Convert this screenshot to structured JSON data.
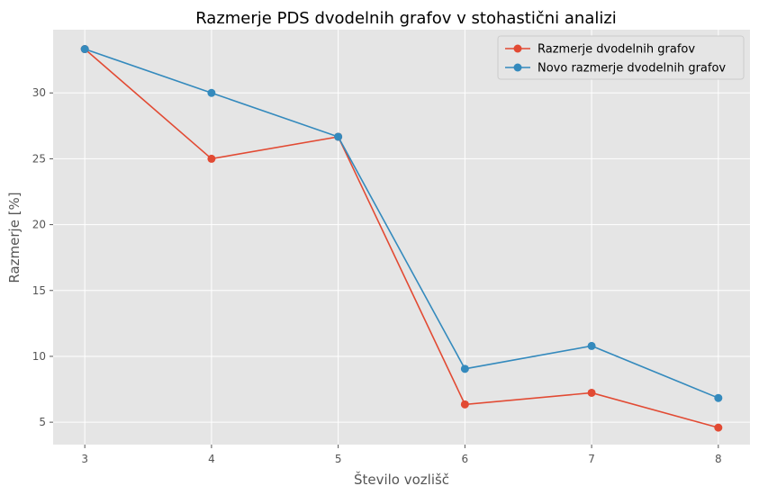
{
  "chart_data": {
    "type": "line",
    "title": "Razmerje PDS dvodelnih grafov v stohastični analizi",
    "xlabel": "Število vozlišč",
    "ylabel": "Razmerje [%]",
    "x": [
      3,
      4,
      5,
      6,
      7,
      8
    ],
    "xlim": [
      2.75,
      8.25
    ],
    "ylim": [
      3.3,
      34.8
    ],
    "x_ticks": [
      3,
      4,
      5,
      6,
      7,
      8
    ],
    "y_ticks": [
      5,
      10,
      15,
      20,
      25,
      30
    ],
    "grid": true,
    "legend_position": "top-right",
    "background": "#e5e5e5",
    "series": [
      {
        "name": "Razmerje dvodelnih grafov",
        "color": "#e24a33",
        "marker": "circle",
        "values": [
          33.33,
          25.0,
          26.67,
          6.35,
          7.23,
          4.59
        ]
      },
      {
        "name": "Novo razmerje dvodelnih grafov",
        "color": "#348abd",
        "marker": "circle",
        "values": [
          33.33,
          30.0,
          26.67,
          9.05,
          10.79,
          6.84
        ]
      }
    ]
  }
}
